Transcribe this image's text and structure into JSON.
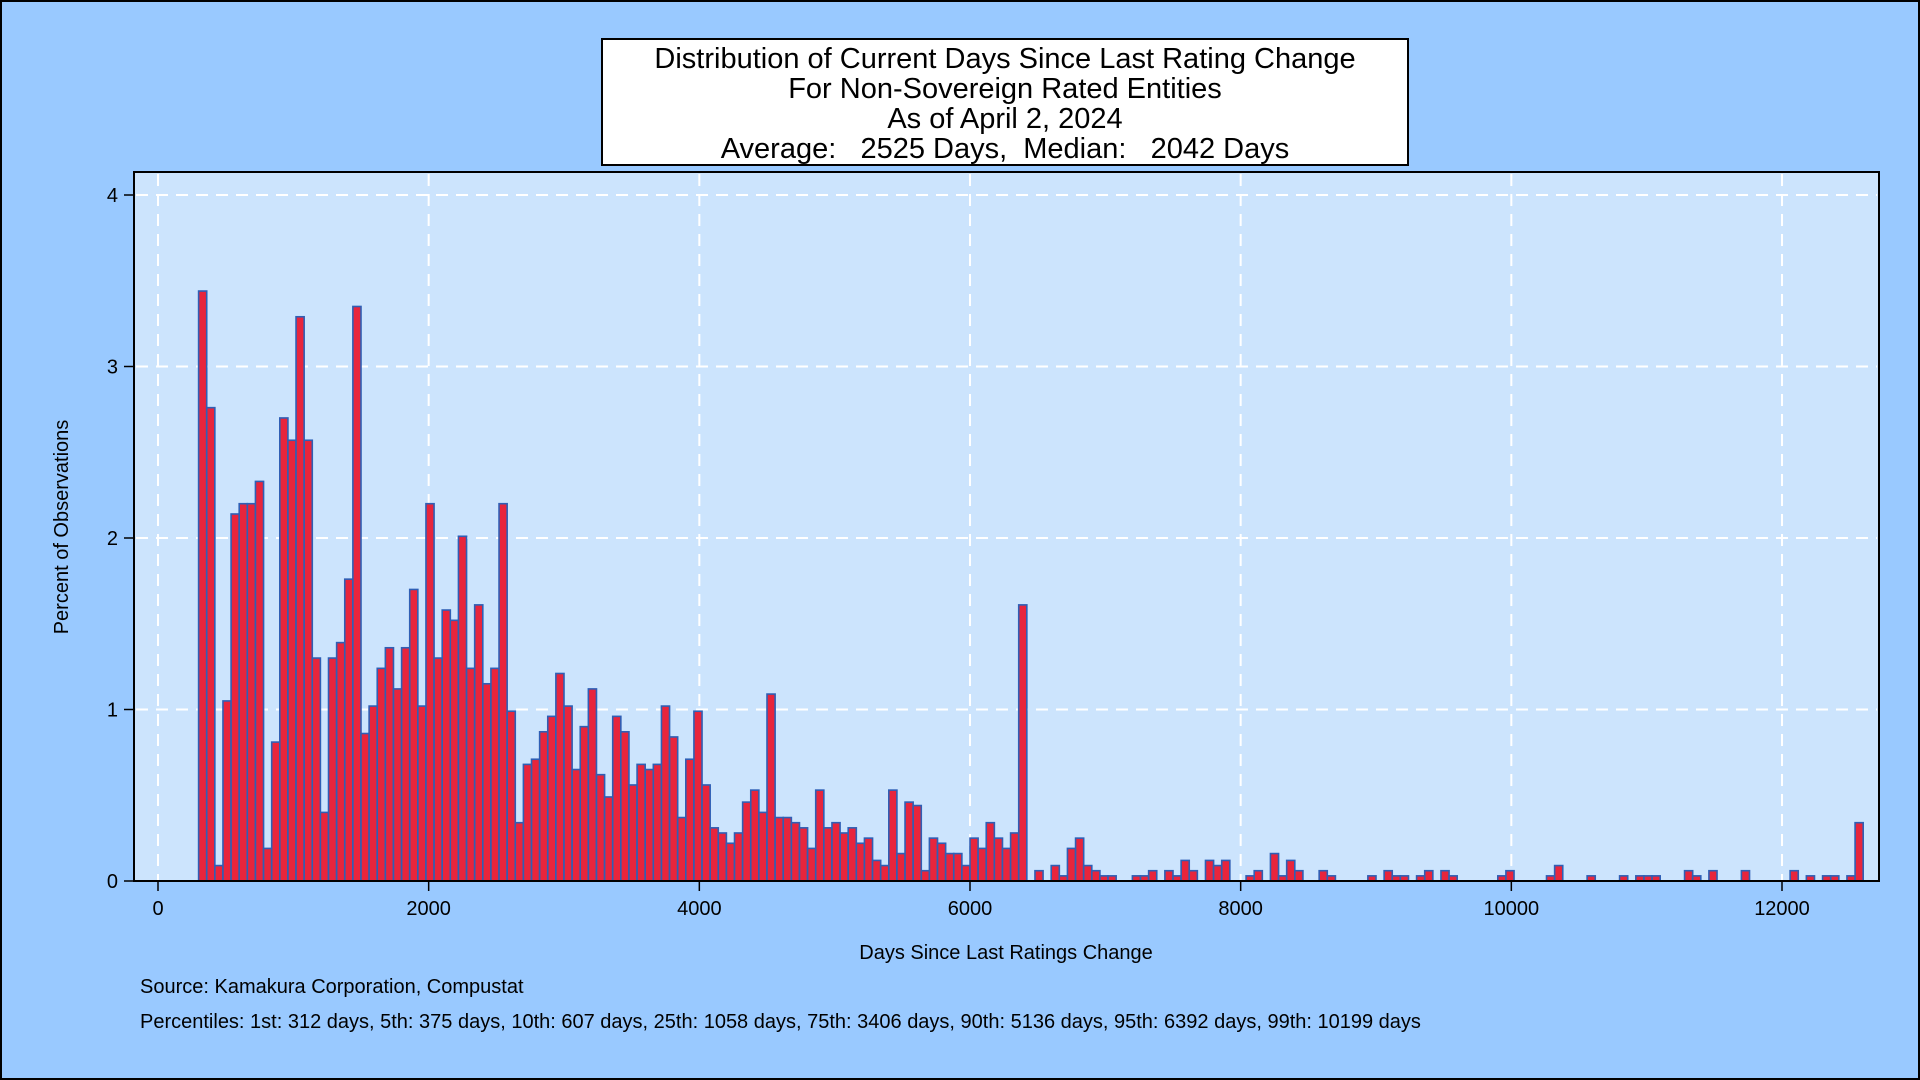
{
  "chart_data": {
    "type": "bar",
    "title_lines": [
      "Distribution of Current Days Since Last Rating Change",
      "For Non-Sovereign Rated Entities",
      "As of April 2, 2024",
      "Average:   2525 Days,  Median:   2042 Days"
    ],
    "xlabel": "Days Since Last Ratings Change",
    "ylabel": "Percent of Observations",
    "xlim": [
      -400,
      12600
    ],
    "ylim": [
      0,
      4.15
    ],
    "x_ticks": [
      0,
      2000,
      4000,
      6000,
      8000,
      10000,
      12000
    ],
    "x_tick_labels": [
      "0",
      "2000",
      "4000",
      "6000",
      "8000",
      "10000",
      "12000"
    ],
    "y_ticks": [
      0,
      1,
      2,
      3,
      4
    ],
    "y_tick_labels": [
      "0",
      "1",
      "2",
      "3",
      "4"
    ],
    "grid": true,
    "bin_width": 60,
    "bar_fill": "#e8253c",
    "bar_edge": "#2f5fb5",
    "bins": [
      {
        "x": 300,
        "y": 3.44
      },
      {
        "x": 360,
        "y": 2.76
      },
      {
        "x": 420,
        "y": 0.09
      },
      {
        "x": 480,
        "y": 1.05
      },
      {
        "x": 540,
        "y": 2.14
      },
      {
        "x": 600,
        "y": 2.2
      },
      {
        "x": 660,
        "y": 2.2
      },
      {
        "x": 720,
        "y": 2.33
      },
      {
        "x": 780,
        "y": 0.19
      },
      {
        "x": 840,
        "y": 0.81
      },
      {
        "x": 900,
        "y": 2.7
      },
      {
        "x": 960,
        "y": 2.57
      },
      {
        "x": 1020,
        "y": 3.29
      },
      {
        "x": 1080,
        "y": 2.57
      },
      {
        "x": 1140,
        "y": 1.3
      },
      {
        "x": 1200,
        "y": 0.4
      },
      {
        "x": 1260,
        "y": 1.3
      },
      {
        "x": 1320,
        "y": 1.39
      },
      {
        "x": 1380,
        "y": 1.76
      },
      {
        "x": 1440,
        "y": 3.35
      },
      {
        "x": 1500,
        "y": 0.86
      },
      {
        "x": 1560,
        "y": 1.02
      },
      {
        "x": 1620,
        "y": 1.24
      },
      {
        "x": 1680,
        "y": 1.36
      },
      {
        "x": 1740,
        "y": 1.12
      },
      {
        "x": 1800,
        "y": 1.36
      },
      {
        "x": 1860,
        "y": 1.7
      },
      {
        "x": 1920,
        "y": 1.02
      },
      {
        "x": 1980,
        "y": 2.2
      },
      {
        "x": 2040,
        "y": 1.3
      },
      {
        "x": 2100,
        "y": 1.58
      },
      {
        "x": 2160,
        "y": 1.52
      },
      {
        "x": 2220,
        "y": 2.01
      },
      {
        "x": 2280,
        "y": 1.24
      },
      {
        "x": 2340,
        "y": 1.61
      },
      {
        "x": 2400,
        "y": 1.15
      },
      {
        "x": 2460,
        "y": 1.24
      },
      {
        "x": 2520,
        "y": 2.2
      },
      {
        "x": 2580,
        "y": 0.99
      },
      {
        "x": 2640,
        "y": 0.34
      },
      {
        "x": 2700,
        "y": 0.68
      },
      {
        "x": 2760,
        "y": 0.71
      },
      {
        "x": 2820,
        "y": 0.87
      },
      {
        "x": 2880,
        "y": 0.96
      },
      {
        "x": 2940,
        "y": 1.21
      },
      {
        "x": 3000,
        "y": 1.02
      },
      {
        "x": 3060,
        "y": 0.65
      },
      {
        "x": 3120,
        "y": 0.9
      },
      {
        "x": 3180,
        "y": 1.12
      },
      {
        "x": 3240,
        "y": 0.62
      },
      {
        "x": 3300,
        "y": 0.49
      },
      {
        "x": 3360,
        "y": 0.96
      },
      {
        "x": 3420,
        "y": 0.87
      },
      {
        "x": 3480,
        "y": 0.56
      },
      {
        "x": 3540,
        "y": 0.68
      },
      {
        "x": 3600,
        "y": 0.65
      },
      {
        "x": 3660,
        "y": 0.68
      },
      {
        "x": 3720,
        "y": 1.02
      },
      {
        "x": 3780,
        "y": 0.84
      },
      {
        "x": 3840,
        "y": 0.37
      },
      {
        "x": 3900,
        "y": 0.71
      },
      {
        "x": 3960,
        "y": 0.99
      },
      {
        "x": 4020,
        "y": 0.56
      },
      {
        "x": 4080,
        "y": 0.31
      },
      {
        "x": 4140,
        "y": 0.28
      },
      {
        "x": 4200,
        "y": 0.22
      },
      {
        "x": 4260,
        "y": 0.28
      },
      {
        "x": 4320,
        "y": 0.46
      },
      {
        "x": 4380,
        "y": 0.53
      },
      {
        "x": 4440,
        "y": 0.4
      },
      {
        "x": 4500,
        "y": 1.09
      },
      {
        "x": 4560,
        "y": 0.37
      },
      {
        "x": 4620,
        "y": 0.37
      },
      {
        "x": 4680,
        "y": 0.34
      },
      {
        "x": 4740,
        "y": 0.31
      },
      {
        "x": 4800,
        "y": 0.19
      },
      {
        "x": 4860,
        "y": 0.53
      },
      {
        "x": 4920,
        "y": 0.31
      },
      {
        "x": 4980,
        "y": 0.34
      },
      {
        "x": 5040,
        "y": 0.28
      },
      {
        "x": 5100,
        "y": 0.31
      },
      {
        "x": 5160,
        "y": 0.22
      },
      {
        "x": 5220,
        "y": 0.25
      },
      {
        "x": 5280,
        "y": 0.12
      },
      {
        "x": 5340,
        "y": 0.09
      },
      {
        "x": 5400,
        "y": 0.53
      },
      {
        "x": 5460,
        "y": 0.16
      },
      {
        "x": 5520,
        "y": 0.46
      },
      {
        "x": 5580,
        "y": 0.44
      },
      {
        "x": 5640,
        "y": 0.06
      },
      {
        "x": 5700,
        "y": 0.25
      },
      {
        "x": 5760,
        "y": 0.22
      },
      {
        "x": 5820,
        "y": 0.16
      },
      {
        "x": 5880,
        "y": 0.16
      },
      {
        "x": 5940,
        "y": 0.09
      },
      {
        "x": 6000,
        "y": 0.25
      },
      {
        "x": 6060,
        "y": 0.19
      },
      {
        "x": 6120,
        "y": 0.34
      },
      {
        "x": 6180,
        "y": 0.25
      },
      {
        "x": 6240,
        "y": 0.19
      },
      {
        "x": 6300,
        "y": 0.28
      },
      {
        "x": 6360,
        "y": 1.61
      },
      {
        "x": 6480,
        "y": 0.06
      },
      {
        "x": 6600,
        "y": 0.09
      },
      {
        "x": 6660,
        "y": 0.03
      },
      {
        "x": 6720,
        "y": 0.19
      },
      {
        "x": 6780,
        "y": 0.25
      },
      {
        "x": 6840,
        "y": 0.09
      },
      {
        "x": 6900,
        "y": 0.06
      },
      {
        "x": 6960,
        "y": 0.03
      },
      {
        "x": 7020,
        "y": 0.03
      },
      {
        "x": 7200,
        "y": 0.03
      },
      {
        "x": 7260,
        "y": 0.03
      },
      {
        "x": 7320,
        "y": 0.06
      },
      {
        "x": 7440,
        "y": 0.06
      },
      {
        "x": 7500,
        "y": 0.03
      },
      {
        "x": 7560,
        "y": 0.12
      },
      {
        "x": 7620,
        "y": 0.06
      },
      {
        "x": 7740,
        "y": 0.12
      },
      {
        "x": 7800,
        "y": 0.09
      },
      {
        "x": 7860,
        "y": 0.12
      },
      {
        "x": 8040,
        "y": 0.03
      },
      {
        "x": 8100,
        "y": 0.06
      },
      {
        "x": 8220,
        "y": 0.16
      },
      {
        "x": 8280,
        "y": 0.03
      },
      {
        "x": 8340,
        "y": 0.12
      },
      {
        "x": 8400,
        "y": 0.06
      },
      {
        "x": 8580,
        "y": 0.06
      },
      {
        "x": 8640,
        "y": 0.03
      },
      {
        "x": 8940,
        "y": 0.03
      },
      {
        "x": 9060,
        "y": 0.06
      },
      {
        "x": 9120,
        "y": 0.03
      },
      {
        "x": 9180,
        "y": 0.03
      },
      {
        "x": 9300,
        "y": 0.03
      },
      {
        "x": 9360,
        "y": 0.06
      },
      {
        "x": 9480,
        "y": 0.06
      },
      {
        "x": 9540,
        "y": 0.03
      },
      {
        "x": 9900,
        "y": 0.03
      },
      {
        "x": 9960,
        "y": 0.06
      },
      {
        "x": 10260,
        "y": 0.03
      },
      {
        "x": 10320,
        "y": 0.09
      },
      {
        "x": 10560,
        "y": 0.03
      },
      {
        "x": 10800,
        "y": 0.03
      },
      {
        "x": 10920,
        "y": 0.03
      },
      {
        "x": 10980,
        "y": 0.03
      },
      {
        "x": 11040,
        "y": 0.03
      },
      {
        "x": 11280,
        "y": 0.06
      },
      {
        "x": 11340,
        "y": 0.03
      },
      {
        "x": 11460,
        "y": 0.06
      },
      {
        "x": 11700,
        "y": 0.06
      },
      {
        "x": 12060,
        "y": 0.06
      },
      {
        "x": 12180,
        "y": 0.03
      },
      {
        "x": 12300,
        "y": 0.03
      },
      {
        "x": 12360,
        "y": 0.03
      },
      {
        "x": 12480,
        "y": 0.03
      },
      {
        "x": 12540,
        "y": 0.34
      }
    ]
  },
  "notes": {
    "source": "Source: Kamakura Corporation, Compustat",
    "percentiles": "Percentiles: 1st: 312 days, 5th: 375 days, 10th: 607 days, 25th: 1058 days, 75th: 3406 days, 90th: 5136 days, 95th: 6392 days, 99th: 10199 days"
  },
  "colors": {
    "page_background": "#99c9ff",
    "plot_background": "#cce4fd",
    "grid": "#ffffff"
  }
}
